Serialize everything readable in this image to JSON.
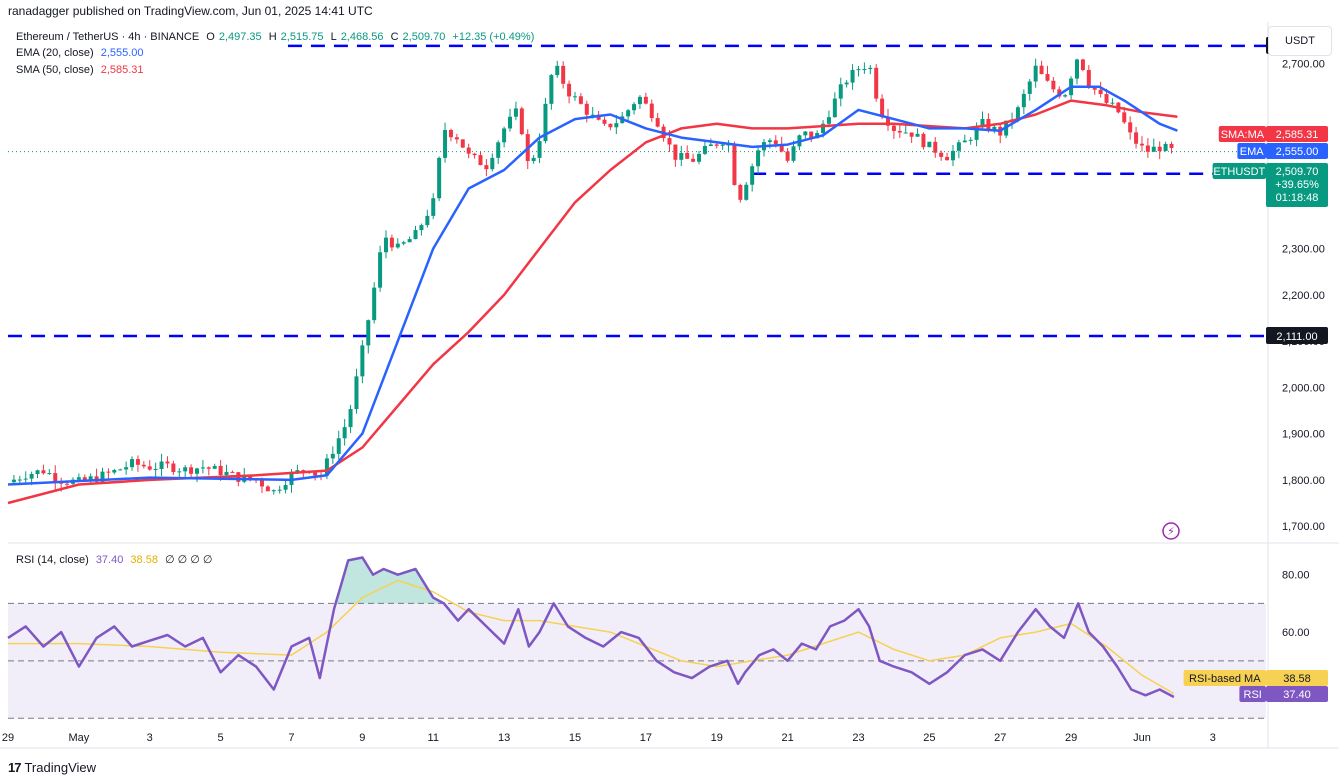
{
  "header": {
    "published": "ranadagger published on TradingView.com, Jun 01, 2025 14:41 UTC"
  },
  "legend": {
    "symbol": "Ethereum / TetherUS · 4h · BINANCE",
    "o_label": "O",
    "o": "2,497.35",
    "h_label": "H",
    "h": "2,515.75",
    "l_label": "L",
    "l": "2,468.56",
    "c_label": "C",
    "c": "2,509.70",
    "change": "+12.35 (+0.49%)",
    "ema_label": "EMA (20, close)",
    "ema_value": "2,555.00",
    "sma_label": "SMA (50, close)",
    "sma_value": "2,585.31",
    "rsi_label": "RSI (14, close)",
    "rsi_value": "37.40",
    "rsi_ma_value": "38.58",
    "rsi_extra": "∅ ∅ ∅ ∅"
  },
  "currency": "USDT",
  "footer": {
    "logo_mark": "17",
    "brand": "TradingView"
  },
  "colors": {
    "up": "#089981",
    "down": "#f23645",
    "ema": "#2962ff",
    "sma": "#f23645",
    "support_line": "#0000ff",
    "rsi": "#7e57c2",
    "rsi_ma": "#f7d154",
    "rsi_band": "#7e57c2"
  },
  "chart_data": {
    "type": "candlestick",
    "y_ticks": [
      1700,
      1800,
      1900,
      2000,
      2100,
      2200,
      2300,
      2400,
      2500,
      2600,
      2700
    ],
    "y_tick_labels": [
      "1,700.00",
      "1,800.00",
      "1,900.00",
      "2,000.00",
      "2,100.00",
      "2,200.00",
      "2,300.00",
      "",
      "",
      "",
      "2,700.00"
    ],
    "ylim": [
      1670,
      2790
    ],
    "x_tick_labels": [
      "29",
      "May",
      "3",
      "5",
      "7",
      "9",
      "11",
      "13",
      "15",
      "17",
      "19",
      "21",
      "23",
      "25",
      "27",
      "29",
      "Jun",
      "3"
    ],
    "x_tick_days": [
      0,
      2,
      4,
      6,
      8,
      10,
      12,
      14,
      16,
      18,
      20,
      22,
      24,
      26,
      28,
      30,
      32,
      34
    ],
    "horizontal_levels": [
      {
        "value": 2738.5,
        "label": "2,738.50"
      },
      {
        "value": 2462.0,
        "label": "2,462.00"
      },
      {
        "value": 2111.0,
        "label": "2,111.00"
      }
    ],
    "price_tags": [
      {
        "name": "SMA:MA",
        "value": "2,585.31",
        "color": "#f23645"
      },
      {
        "name": "EMA",
        "value": "2,555.00",
        "color": "#2962ff"
      },
      {
        "name": "ETHUSDT",
        "value": "2,509.70",
        "extra1": "+39.65%",
        "extra2": "01:18:48",
        "color": "#089981"
      }
    ],
    "close_path": [
      [
        0,
        1795
      ],
      [
        0.5,
        1812
      ],
      [
        1,
        1820
      ],
      [
        1.5,
        1800
      ],
      [
        2,
        1795
      ],
      [
        2.5,
        1805
      ],
      [
        3,
        1818
      ],
      [
        3.5,
        1835
      ],
      [
        4,
        1828
      ],
      [
        4.5,
        1830
      ],
      [
        5,
        1822
      ],
      [
        5.5,
        1828
      ],
      [
        6,
        1818
      ],
      [
        6.5,
        1805
      ],
      [
        7,
        1800
      ],
      [
        7.5,
        1775
      ],
      [
        8,
        1812
      ],
      [
        8.5,
        1825
      ],
      [
        8.8,
        1805
      ],
      [
        9.2,
        1870
      ],
      [
        9.6,
        1930
      ],
      [
        10,
        2080
      ],
      [
        10.3,
        2200
      ],
      [
        10.6,
        2330
      ],
      [
        11,
        2300
      ],
      [
        11.5,
        2330
      ],
      [
        12,
        2400
      ],
      [
        12.3,
        2560
      ],
      [
        12.7,
        2540
      ],
      [
        13,
        2500
      ],
      [
        13.5,
        2480
      ],
      [
        14,
        2560
      ],
      [
        14.4,
        2600
      ],
      [
        14.7,
        2470
      ],
      [
        15,
        2540
      ],
      [
        15.4,
        2700
      ],
      [
        15.8,
        2640
      ],
      [
        16.3,
        2600
      ],
      [
        16.8,
        2560
      ],
      [
        17.3,
        2580
      ],
      [
        17.8,
        2630
      ],
      [
        18.3,
        2580
      ],
      [
        18.8,
        2500
      ],
      [
        19.3,
        2490
      ],
      [
        19.8,
        2520
      ],
      [
        20.3,
        2540
      ],
      [
        20.6,
        2400
      ],
      [
        20.8,
        2440
      ],
      [
        21.2,
        2520
      ],
      [
        21.6,
        2540
      ],
      [
        22,
        2490
      ],
      [
        22.4,
        2550
      ],
      [
        22.8,
        2540
      ],
      [
        23.2,
        2600
      ],
      [
        23.6,
        2660
      ],
      [
        24,
        2690
      ],
      [
        24.3,
        2700
      ],
      [
        24.6,
        2600
      ],
      [
        25,
        2560
      ],
      [
        25.5,
        2550
      ],
      [
        26,
        2520
      ],
      [
        26.5,
        2500
      ],
      [
        27,
        2530
      ],
      [
        27.5,
        2570
      ],
      [
        28,
        2550
      ],
      [
        28.5,
        2600
      ],
      [
        29,
        2690
      ],
      [
        29.4,
        2650
      ],
      [
        29.8,
        2630
      ],
      [
        30.2,
        2720
      ],
      [
        30.5,
        2660
      ],
      [
        30.9,
        2620
      ],
      [
        31.3,
        2600
      ],
      [
        31.7,
        2540
      ],
      [
        32.1,
        2510
      ],
      [
        32.5,
        2520
      ],
      [
        32.9,
        2509.7
      ]
    ],
    "ema_path": [
      [
        0,
        1790
      ],
      [
        4,
        1805
      ],
      [
        8,
        1800
      ],
      [
        9,
        1810
      ],
      [
        10,
        1900
      ],
      [
        11,
        2100
      ],
      [
        12,
        2300
      ],
      [
        13,
        2430
      ],
      [
        14,
        2470
      ],
      [
        15,
        2540
      ],
      [
        16,
        2580
      ],
      [
        17,
        2590
      ],
      [
        18,
        2560
      ],
      [
        19,
        2540
      ],
      [
        20,
        2530
      ],
      [
        21,
        2520
      ],
      [
        22,
        2525
      ],
      [
        23,
        2545
      ],
      [
        24,
        2600
      ],
      [
        25,
        2580
      ],
      [
        26,
        2560
      ],
      [
        27,
        2560
      ],
      [
        28,
        2555
      ],
      [
        29,
        2600
      ],
      [
        30,
        2650
      ],
      [
        30.8,
        2650
      ],
      [
        31.5,
        2620
      ],
      [
        32.5,
        2570
      ],
      [
        33,
        2555
      ]
    ],
    "sma_path": [
      [
        0,
        1750
      ],
      [
        2,
        1790
      ],
      [
        4,
        1800
      ],
      [
        7,
        1810
      ],
      [
        9,
        1820
      ],
      [
        10,
        1870
      ],
      [
        11,
        1960
      ],
      [
        12,
        2050
      ],
      [
        13,
        2120
      ],
      [
        14,
        2200
      ],
      [
        15,
        2300
      ],
      [
        16,
        2400
      ],
      [
        17,
        2470
      ],
      [
        18,
        2530
      ],
      [
        19,
        2560
      ],
      [
        20,
        2570
      ],
      [
        21,
        2560
      ],
      [
        22,
        2560
      ],
      [
        23,
        2565
      ],
      [
        24,
        2570
      ],
      [
        25,
        2570
      ],
      [
        26,
        2565
      ],
      [
        27,
        2560
      ],
      [
        28,
        2570
      ],
      [
        29,
        2590
      ],
      [
        30,
        2620
      ],
      [
        31,
        2610
      ],
      [
        32,
        2595
      ],
      [
        33,
        2585.31
      ]
    ],
    "rsi": {
      "y_ticks": [
        40,
        60,
        80
      ],
      "y_tick_labels": [
        "",
        "60.00",
        "80.00"
      ],
      "ylim": [
        28,
        90
      ],
      "upper_band": 70,
      "middle": 50,
      "lower_band": 30,
      "rsi_tag": {
        "name": "RSI",
        "value": "37.40"
      },
      "ma_tag": {
        "name": "RSI-based MA",
        "value": "38.58"
      },
      "rsi_path": [
        [
          0,
          58
        ],
        [
          0.5,
          62
        ],
        [
          1,
          55
        ],
        [
          1.5,
          60
        ],
        [
          2,
          48
        ],
        [
          2.5,
          58
        ],
        [
          3,
          62
        ],
        [
          3.5,
          55
        ],
        [
          4,
          57
        ],
        [
          4.5,
          59
        ],
        [
          5,
          55
        ],
        [
          5.5,
          58
        ],
        [
          6,
          46
        ],
        [
          6.5,
          52
        ],
        [
          7,
          48
        ],
        [
          7.5,
          40
        ],
        [
          8,
          55
        ],
        [
          8.5,
          58
        ],
        [
          8.8,
          44
        ],
        [
          9.2,
          68
        ],
        [
          9.6,
          85
        ],
        [
          10,
          86
        ],
        [
          10.3,
          80
        ],
        [
          10.6,
          82
        ],
        [
          11,
          80
        ],
        [
          11.5,
          82
        ],
        [
          12,
          72
        ],
        [
          12.3,
          70
        ],
        [
          12.7,
          64
        ],
        [
          13,
          68
        ],
        [
          13.5,
          62
        ],
        [
          14,
          56
        ],
        [
          14.4,
          68
        ],
        [
          14.7,
          55
        ],
        [
          15,
          60
        ],
        [
          15.4,
          70
        ],
        [
          15.8,
          62
        ],
        [
          16.3,
          58
        ],
        [
          16.8,
          55
        ],
        [
          17.3,
          60
        ],
        [
          17.8,
          58
        ],
        [
          18.3,
          50
        ],
        [
          18.8,
          46
        ],
        [
          19.3,
          44
        ],
        [
          19.8,
          48
        ],
        [
          20.3,
          50
        ],
        [
          20.6,
          42
        ],
        [
          20.8,
          46
        ],
        [
          21.2,
          52
        ],
        [
          21.6,
          54
        ],
        [
          22,
          50
        ],
        [
          22.4,
          56
        ],
        [
          22.8,
          54
        ],
        [
          23.2,
          62
        ],
        [
          23.6,
          64
        ],
        [
          24,
          68
        ],
        [
          24.3,
          62
        ],
        [
          24.6,
          50
        ],
        [
          25,
          48
        ],
        [
          25.5,
          46
        ],
        [
          26,
          42
        ],
        [
          26.5,
          46
        ],
        [
          27,
          52
        ],
        [
          27.5,
          54
        ],
        [
          28,
          50
        ],
        [
          28.5,
          60
        ],
        [
          29,
          68
        ],
        [
          29.4,
          62
        ],
        [
          29.8,
          58
        ],
        [
          30.2,
          70
        ],
        [
          30.5,
          60
        ],
        [
          30.9,
          55
        ],
        [
          31.3,
          48
        ],
        [
          31.7,
          40
        ],
        [
          32.1,
          38
        ],
        [
          32.5,
          40
        ],
        [
          32.9,
          37.4
        ]
      ],
      "ma_path": [
        [
          0,
          56
        ],
        [
          2,
          56
        ],
        [
          4,
          55
        ],
        [
          6,
          53
        ],
        [
          8,
          52
        ],
        [
          9,
          60
        ],
        [
          10,
          72
        ],
        [
          11,
          78
        ],
        [
          12,
          74
        ],
        [
          13,
          67
        ],
        [
          14,
          64
        ],
        [
          15,
          64
        ],
        [
          16,
          62
        ],
        [
          17,
          60
        ],
        [
          18,
          55
        ],
        [
          19,
          50
        ],
        [
          20,
          48
        ],
        [
          21,
          50
        ],
        [
          22,
          52
        ],
        [
          23,
          56
        ],
        [
          24,
          60
        ],
        [
          25,
          54
        ],
        [
          26,
          50
        ],
        [
          27,
          52
        ],
        [
          28,
          58
        ],
        [
          29,
          60
        ],
        [
          30,
          63
        ],
        [
          31,
          55
        ],
        [
          32,
          45
        ],
        [
          32.9,
          38.58
        ]
      ]
    }
  }
}
